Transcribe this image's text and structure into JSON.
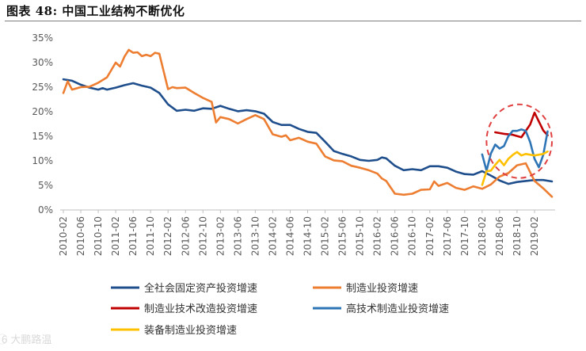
{
  "figure_title": "图表 48:   中国工业结构不断优化",
  "watermark": "6⃝ 大鹏路温",
  "chart_data": {
    "type": "line",
    "title": "",
    "xlabel": "",
    "ylabel": "",
    "ylim": [
      0,
      35
    ],
    "yticks": [
      "0%",
      "5%",
      "10%",
      "15%",
      "20%",
      "25%",
      "30%",
      "35%"
    ],
    "xticks": [
      "2010-02",
      "2010-06",
      "2010-10",
      "2011-02",
      "2011-06",
      "2011-10",
      "2012-02",
      "2012-06",
      "2012-10",
      "2013-02",
      "2013-06",
      "2013-10",
      "2014-02",
      "2014-06",
      "2014-10",
      "2015-02",
      "2015-06",
      "2015-10",
      "2016-02",
      "2016-06",
      "2016-10",
      "2017-02",
      "2017-06",
      "2017-10",
      "2018-02",
      "2018-06",
      "2018-10",
      "2019-02"
    ],
    "grid": false,
    "legend_position": "bottom",
    "series": [
      {
        "name": "全社会固定资产投资增速",
        "color": "#1f4e8c",
        "points": [
          [
            "2010-02",
            26.6
          ],
          [
            "2010-04",
            26.3
          ],
          [
            "2010-06",
            25.5
          ],
          [
            "2010-08",
            24.9
          ],
          [
            "2010-10",
            24.5
          ],
          [
            "2010-11",
            24.8
          ],
          [
            "2010-12",
            24.5
          ],
          [
            "2011-02",
            24.9
          ],
          [
            "2011-04",
            25.4
          ],
          [
            "2011-06",
            25.8
          ],
          [
            "2011-08",
            25.3
          ],
          [
            "2011-10",
            24.9
          ],
          [
            "2011-12",
            23.8
          ],
          [
            "2012-02",
            21.5
          ],
          [
            "2012-04",
            20.2
          ],
          [
            "2012-06",
            20.4
          ],
          [
            "2012-08",
            20.2
          ],
          [
            "2012-10",
            20.7
          ],
          [
            "2012-12",
            20.6
          ],
          [
            "2013-02",
            21.2
          ],
          [
            "2013-04",
            20.6
          ],
          [
            "2013-06",
            20.1
          ],
          [
            "2013-08",
            20.3
          ],
          [
            "2013-10",
            20.1
          ],
          [
            "2013-12",
            19.6
          ],
          [
            "2014-02",
            17.9
          ],
          [
            "2014-04",
            17.3
          ],
          [
            "2014-06",
            17.3
          ],
          [
            "2014-08",
            16.5
          ],
          [
            "2014-10",
            15.9
          ],
          [
            "2014-12",
            15.7
          ],
          [
            "2015-02",
            13.9
          ],
          [
            "2015-04",
            12.0
          ],
          [
            "2015-06",
            11.4
          ],
          [
            "2015-08",
            10.9
          ],
          [
            "2015-10",
            10.2
          ],
          [
            "2015-12",
            10.0
          ],
          [
            "2016-02",
            10.2
          ],
          [
            "2016-03",
            10.7
          ],
          [
            "2016-04",
            10.5
          ],
          [
            "2016-06",
            9.0
          ],
          [
            "2016-08",
            8.1
          ],
          [
            "2016-10",
            8.3
          ],
          [
            "2016-12",
            8.1
          ],
          [
            "2017-02",
            8.9
          ],
          [
            "2017-04",
            8.9
          ],
          [
            "2017-06",
            8.6
          ],
          [
            "2017-08",
            7.8
          ],
          [
            "2017-10",
            7.3
          ],
          [
            "2017-12",
            7.2
          ],
          [
            "2018-02",
            7.9
          ],
          [
            "2018-04",
            7.0
          ],
          [
            "2018-06",
            6.0
          ],
          [
            "2018-08",
            5.3
          ],
          [
            "2018-10",
            5.7
          ],
          [
            "2018-12",
            5.9
          ],
          [
            "2019-02",
            6.1
          ],
          [
            "2019-04",
            6.1
          ],
          [
            "2019-06",
            5.8
          ]
        ]
      },
      {
        "name": "制造业投资增速",
        "color": "#ed7d31",
        "points": [
          [
            "2010-02",
            23.8
          ],
          [
            "2010-03",
            26.2
          ],
          [
            "2010-04",
            24.5
          ],
          [
            "2010-06",
            25.0
          ],
          [
            "2010-08",
            25.1
          ],
          [
            "2010-10",
            25.9
          ],
          [
            "2010-12",
            27.0
          ],
          [
            "2011-02",
            30.0
          ],
          [
            "2011-03",
            29.2
          ],
          [
            "2011-04",
            31.2
          ],
          [
            "2011-05",
            32.6
          ],
          [
            "2011-06",
            32.0
          ],
          [
            "2011-07",
            32.1
          ],
          [
            "2011-08",
            31.3
          ],
          [
            "2011-09",
            31.6
          ],
          [
            "2011-10",
            31.3
          ],
          [
            "2011-11",
            32.0
          ],
          [
            "2011-12",
            31.8
          ],
          [
            "2012-02",
            24.6
          ],
          [
            "2012-03",
            25.0
          ],
          [
            "2012-04",
            24.8
          ],
          [
            "2012-06",
            24.9
          ],
          [
            "2012-08",
            23.8
          ],
          [
            "2012-10",
            22.8
          ],
          [
            "2012-12",
            22.0
          ],
          [
            "2013-01",
            17.8
          ],
          [
            "2013-02",
            18.9
          ],
          [
            "2013-04",
            18.5
          ],
          [
            "2013-06",
            17.6
          ],
          [
            "2013-08",
            18.5
          ],
          [
            "2013-10",
            19.3
          ],
          [
            "2013-12",
            18.5
          ],
          [
            "2014-02",
            15.4
          ],
          [
            "2014-04",
            14.9
          ],
          [
            "2014-05",
            15.2
          ],
          [
            "2014-06",
            14.2
          ],
          [
            "2014-08",
            14.7
          ],
          [
            "2014-10",
            13.9
          ],
          [
            "2014-12",
            13.5
          ],
          [
            "2015-02",
            10.9
          ],
          [
            "2015-04",
            10.1
          ],
          [
            "2015-06",
            9.9
          ],
          [
            "2015-08",
            9.0
          ],
          [
            "2015-10",
            8.6
          ],
          [
            "2015-12",
            8.1
          ],
          [
            "2016-02",
            7.4
          ],
          [
            "2016-03",
            6.4
          ],
          [
            "2016-04",
            5.9
          ],
          [
            "2016-06",
            3.3
          ],
          [
            "2016-08",
            3.1
          ],
          [
            "2016-10",
            3.3
          ],
          [
            "2016-12",
            4.1
          ],
          [
            "2017-02",
            4.2
          ],
          [
            "2017-03",
            5.8
          ],
          [
            "2017-04",
            4.9
          ],
          [
            "2017-06",
            5.5
          ],
          [
            "2017-08",
            4.5
          ],
          [
            "2017-10",
            4.1
          ],
          [
            "2017-12",
            4.8
          ],
          [
            "2018-02",
            4.3
          ],
          [
            "2018-04",
            5.2
          ],
          [
            "2018-06",
            6.8
          ],
          [
            "2018-08",
            7.5
          ],
          [
            "2018-10",
            9.1
          ],
          [
            "2018-12",
            9.5
          ],
          [
            "2019-02",
            5.9
          ],
          [
            "2019-04",
            4.4
          ],
          [
            "2019-06",
            2.7
          ]
        ]
      },
      {
        "name": "制造业技术改造投资增速",
        "color": "#c00000",
        "points": [
          [
            "2018-05",
            15.8
          ],
          [
            "2018-07",
            15.5
          ],
          [
            "2018-09",
            15.3
          ],
          [
            "2018-11",
            14.8
          ],
          [
            "2019-01",
            17.4
          ],
          [
            "2019-02",
            19.8
          ],
          [
            "2019-04",
            16.2
          ],
          [
            "2019-05",
            15.2
          ]
        ]
      },
      {
        "name": "高技术制造业投资增速",
        "color": "#2e75b6",
        "points": [
          [
            "2018-02",
            11.3
          ],
          [
            "2018-03",
            8.0
          ],
          [
            "2018-04",
            11.5
          ],
          [
            "2018-05",
            13.3
          ],
          [
            "2018-06",
            12.5
          ],
          [
            "2018-07",
            13.0
          ],
          [
            "2018-08",
            15.0
          ],
          [
            "2018-09",
            16.1
          ],
          [
            "2018-10",
            16.1
          ],
          [
            "2018-11",
            16.4
          ],
          [
            "2018-12",
            16.1
          ],
          [
            "2019-01",
            13.8
          ],
          [
            "2019-02",
            10.4
          ],
          [
            "2019-03",
            8.7
          ],
          [
            "2019-04",
            11.2
          ],
          [
            "2019-05",
            16.0
          ]
        ]
      },
      {
        "name": "装备制造业投资增速",
        "color": "#ffc000",
        "points": [
          [
            "2018-02",
            5.1
          ],
          [
            "2018-03",
            7.9
          ],
          [
            "2018-04",
            8.0
          ],
          [
            "2018-05",
            9.2
          ],
          [
            "2018-06",
            10.2
          ],
          [
            "2018-07",
            9.1
          ],
          [
            "2018-08",
            10.4
          ],
          [
            "2018-09",
            11.2
          ],
          [
            "2018-10",
            11.8
          ],
          [
            "2018-11",
            11.1
          ],
          [
            "2018-12",
            11.4
          ],
          [
            "2019-02",
            11.1
          ],
          [
            "2019-04",
            11.4
          ],
          [
            "2019-05",
            11.9
          ]
        ]
      }
    ],
    "annotations": [
      {
        "shape": "dashed-ellipse",
        "color": "#e04040",
        "x_range": [
          "2018-03",
          "2019-06"
        ],
        "y_range": [
          6.5,
          21.5
        ]
      }
    ]
  }
}
